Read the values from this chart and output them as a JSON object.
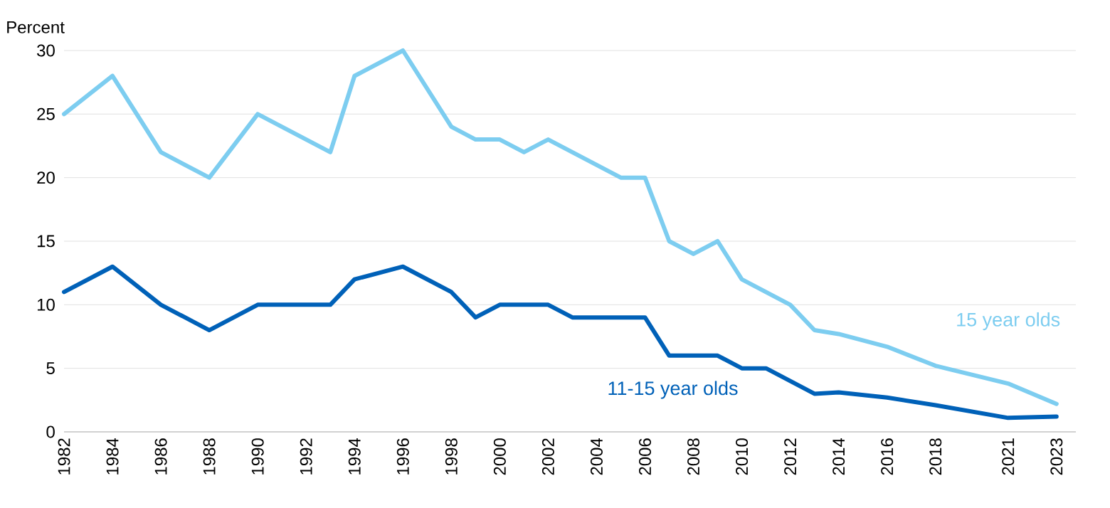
{
  "chart_data": {
    "type": "line",
    "ylabel": "Percent",
    "xlim": [
      1982,
      2023.8
    ],
    "ylim": [
      0,
      30
    ],
    "xticks": [
      1982,
      1984,
      1986,
      1988,
      1990,
      1992,
      1994,
      1996,
      1998,
      2000,
      2002,
      2004,
      2006,
      2008,
      2010,
      2012,
      2014,
      2016,
      2018,
      2021,
      2023
    ],
    "yticks": [
      0,
      5,
      10,
      15,
      20,
      25,
      30
    ],
    "grid": "y",
    "legend": false,
    "line_style": "solid",
    "marker": "none",
    "series": [
      {
        "name": "15 year olds",
        "color": "#7dcdf0",
        "x": [
          1982,
          1984,
          1986,
          1988,
          1990,
          1993,
          1994,
          1996,
          1998,
          1999,
          2000,
          2001,
          2002,
          2005,
          2006,
          2007,
          2008,
          2009,
          2010,
          2012,
          2013,
          2014,
          2016,
          2018,
          2021,
          2023
        ],
        "values": [
          25,
          28,
          22,
          20,
          25,
          22,
          28,
          30,
          24,
          23,
          23,
          22,
          23,
          20,
          20,
          15,
          14,
          15,
          12,
          10,
          8,
          7.7,
          6.7,
          5.2,
          3.8,
          2.2
        ]
      },
      {
        "name": "11-15 year olds",
        "color": "#0061b8",
        "x": [
          1982,
          1984,
          1986,
          1988,
          1990,
          1993,
          1994,
          1996,
          1998,
          1999,
          2000,
          2002,
          2003,
          2006,
          2007,
          2009,
          2010,
          2011,
          2013,
          2014,
          2016,
          2018,
          2021,
          2023
        ],
        "values": [
          11,
          13,
          10,
          8,
          10,
          10,
          12,
          13,
          11,
          9,
          10,
          10,
          9,
          9,
          6,
          6,
          5,
          5,
          3,
          3.1,
          2.7,
          2.1,
          1.1,
          1.2
        ]
      }
    ]
  }
}
